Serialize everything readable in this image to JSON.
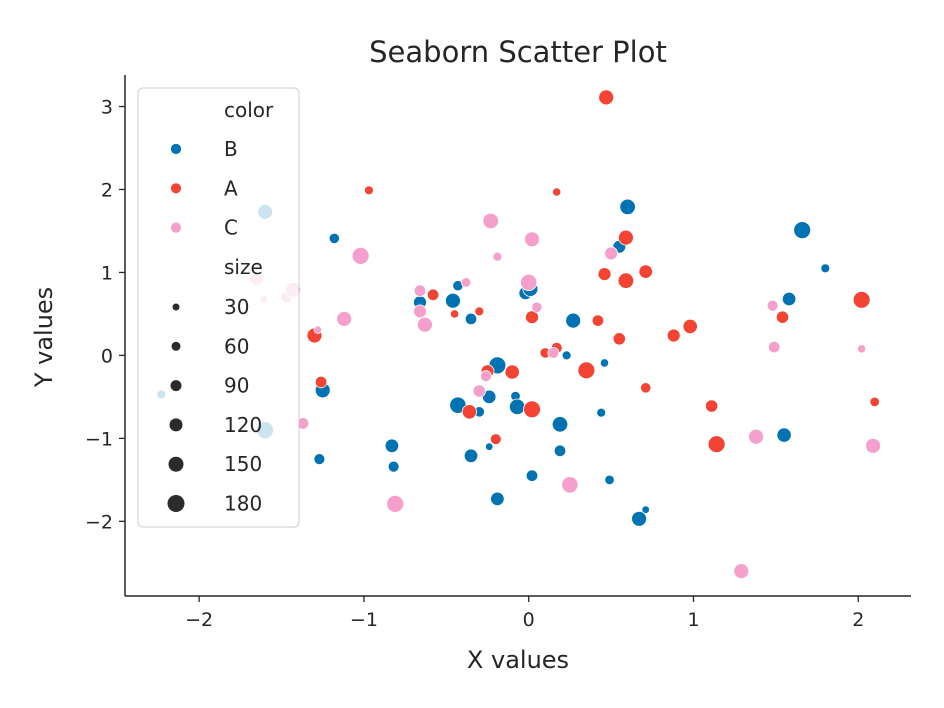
{
  "chart_data": {
    "type": "scatter",
    "title": "Seaborn Scatter Plot",
    "xlabel": "X values",
    "ylabel": "Y values",
    "xlim": [
      -2.45,
      2.32
    ],
    "ylim": [
      -2.9,
      3.38
    ],
    "xticks": [
      -2,
      -1,
      0,
      1,
      2
    ],
    "yticks": [
      -2,
      -1,
      0,
      1,
      2,
      3
    ],
    "xtick_labels": [
      "−2",
      "−1",
      "0",
      "1",
      "2"
    ],
    "ytick_labels": [
      "−2",
      "−1",
      "0",
      "1",
      "2",
      "3"
    ],
    "grid": false,
    "legend_placement": "upper-left",
    "legend": {
      "hue_title": "color",
      "hue_entries": [
        {
          "label": "B",
          "color": "#0173b2"
        },
        {
          "label": "A",
          "color": "#f24333"
        },
        {
          "label": "C",
          "color": "#f59fcc"
        }
      ],
      "size_title": "size",
      "size_entries": [
        "30",
        "60",
        "90",
        "120",
        "150",
        "180"
      ]
    },
    "series": [
      {
        "name": "B",
        "color": "#0173b2",
        "points": [
          {
            "x": -1.6,
            "y": 1.73,
            "size": 150
          },
          {
            "x": -2.23,
            "y": -0.47,
            "size": 60
          },
          {
            "x": -1.6,
            "y": -0.9,
            "size": 180
          },
          {
            "x": -1.18,
            "y": 1.41,
            "size": 80
          },
          {
            "x": -1.25,
            "y": -0.42,
            "size": 150
          },
          {
            "x": -1.27,
            "y": -1.25,
            "size": 90
          },
          {
            "x": -0.83,
            "y": -1.09,
            "size": 130
          },
          {
            "x": -0.82,
            "y": -1.34,
            "size": 90
          },
          {
            "x": -0.66,
            "y": 0.64,
            "size": 120
          },
          {
            "x": -0.46,
            "y": 0.66,
            "size": 150
          },
          {
            "x": -0.43,
            "y": 0.84,
            "size": 80
          },
          {
            "x": -0.43,
            "y": -0.6,
            "size": 170
          },
          {
            "x": -0.35,
            "y": 0.44,
            "size": 100
          },
          {
            "x": -0.35,
            "y": -1.21,
            "size": 130
          },
          {
            "x": -0.3,
            "y": -0.68,
            "size": 80
          },
          {
            "x": -0.24,
            "y": -0.5,
            "size": 130
          },
          {
            "x": -0.24,
            "y": -1.1,
            "size": 40
          },
          {
            "x": -0.19,
            "y": -0.12,
            "size": 180
          },
          {
            "x": -0.19,
            "y": -1.73,
            "size": 130
          },
          {
            "x": -0.08,
            "y": -0.49,
            "size": 70
          },
          {
            "x": -0.07,
            "y": -0.62,
            "size": 160
          },
          {
            "x": -0.02,
            "y": 0.75,
            "size": 120
          },
          {
            "x": 0.01,
            "y": 0.8,
            "size": 150
          },
          {
            "x": 0.02,
            "y": -1.45,
            "size": 100
          },
          {
            "x": 0.19,
            "y": -0.83,
            "size": 160
          },
          {
            "x": 0.19,
            "y": -1.15,
            "size": 100
          },
          {
            "x": 0.23,
            "y": 0.0,
            "size": 60
          },
          {
            "x": 0.27,
            "y": 0.42,
            "size": 150
          },
          {
            "x": 0.44,
            "y": -0.69,
            "size": 60
          },
          {
            "x": 0.46,
            "y": -0.09,
            "size": 50
          },
          {
            "x": 0.49,
            "y": -1.5,
            "size": 70
          },
          {
            "x": 0.55,
            "y": 1.31,
            "size": 120
          },
          {
            "x": 0.6,
            "y": 1.79,
            "size": 160
          },
          {
            "x": 0.67,
            "y": -1.97,
            "size": 150
          },
          {
            "x": 0.71,
            "y": -1.86,
            "size": 40
          },
          {
            "x": 1.55,
            "y": -0.96,
            "size": 140
          },
          {
            "x": 1.58,
            "y": 0.68,
            "size": 130
          },
          {
            "x": 1.66,
            "y": 1.51,
            "size": 180
          },
          {
            "x": 1.8,
            "y": 1.05,
            "size": 60
          }
        ]
      },
      {
        "name": "A",
        "color": "#f24333",
        "points": [
          {
            "x": -1.3,
            "y": 0.24,
            "size": 150
          },
          {
            "x": -1.26,
            "y": -0.32,
            "size": 100
          },
          {
            "x": -0.97,
            "y": 1.99,
            "size": 60
          },
          {
            "x": -0.58,
            "y": 0.73,
            "size": 100
          },
          {
            "x": -0.45,
            "y": 0.5,
            "size": 50
          },
          {
            "x": -0.36,
            "y": -0.68,
            "size": 140
          },
          {
            "x": -0.3,
            "y": 0.53,
            "size": 60
          },
          {
            "x": -0.25,
            "y": -0.19,
            "size": 120
          },
          {
            "x": -0.2,
            "y": -1.01,
            "size": 90
          },
          {
            "x": -0.1,
            "y": -0.2,
            "size": 140
          },
          {
            "x": 0.02,
            "y": 0.46,
            "size": 120
          },
          {
            "x": 0.02,
            "y": -0.65,
            "size": 180
          },
          {
            "x": 0.1,
            "y": 0.03,
            "size": 80
          },
          {
            "x": 0.17,
            "y": 0.09,
            "size": 90
          },
          {
            "x": 0.17,
            "y": 1.97,
            "size": 50
          },
          {
            "x": 0.35,
            "y": -0.18,
            "size": 180
          },
          {
            "x": 0.42,
            "y": 0.42,
            "size": 100
          },
          {
            "x": 0.46,
            "y": 0.98,
            "size": 120
          },
          {
            "x": 0.47,
            "y": 3.11,
            "size": 150
          },
          {
            "x": 0.55,
            "y": 0.2,
            "size": 110
          },
          {
            "x": 0.59,
            "y": 0.9,
            "size": 160
          },
          {
            "x": 0.59,
            "y": 1.42,
            "size": 150
          },
          {
            "x": 0.71,
            "y": -0.39,
            "size": 80
          },
          {
            "x": 0.71,
            "y": 1.01,
            "size": 130
          },
          {
            "x": 0.88,
            "y": 0.24,
            "size": 120
          },
          {
            "x": 0.98,
            "y": 0.35,
            "size": 140
          },
          {
            "x": 1.11,
            "y": -0.61,
            "size": 110
          },
          {
            "x": 1.14,
            "y": -1.07,
            "size": 180
          },
          {
            "x": 1.54,
            "y": 0.46,
            "size": 110
          },
          {
            "x": 2.02,
            "y": 0.67,
            "size": 180
          },
          {
            "x": 2.1,
            "y": -0.56,
            "size": 70
          }
        ]
      },
      {
        "name": "C",
        "color": "#f59fcc",
        "points": [
          {
            "x": -1.65,
            "y": 0.92,
            "size": 120
          },
          {
            "x": -1.61,
            "y": 0.68,
            "size": 40
          },
          {
            "x": -1.47,
            "y": 0.7,
            "size": 100
          },
          {
            "x": -1.43,
            "y": 0.79,
            "size": 150
          },
          {
            "x": -1.37,
            "y": -0.82,
            "size": 100
          },
          {
            "x": -1.28,
            "y": 0.31,
            "size": 40
          },
          {
            "x": -1.12,
            "y": 0.44,
            "size": 150
          },
          {
            "x": -1.02,
            "y": 1.2,
            "size": 180
          },
          {
            "x": -0.81,
            "y": -1.79,
            "size": 180
          },
          {
            "x": -0.66,
            "y": 0.53,
            "size": 120
          },
          {
            "x": -0.66,
            "y": 0.78,
            "size": 100
          },
          {
            "x": -0.63,
            "y": 0.37,
            "size": 150
          },
          {
            "x": -0.38,
            "y": 0.88,
            "size": 70
          },
          {
            "x": -0.3,
            "y": -0.43,
            "size": 110
          },
          {
            "x": -0.26,
            "y": -0.25,
            "size": 90
          },
          {
            "x": -0.23,
            "y": 1.62,
            "size": 160
          },
          {
            "x": -0.19,
            "y": 1.19,
            "size": 60
          },
          {
            "x": 0.0,
            "y": 0.88,
            "size": 170
          },
          {
            "x": 0.02,
            "y": 1.4,
            "size": 150
          },
          {
            "x": 0.05,
            "y": 0.58,
            "size": 80
          },
          {
            "x": 0.15,
            "y": 0.03,
            "size": 90
          },
          {
            "x": 0.25,
            "y": -1.56,
            "size": 170
          },
          {
            "x": 0.5,
            "y": 1.23,
            "size": 120
          },
          {
            "x": 1.29,
            "y": -2.6,
            "size": 150
          },
          {
            "x": 1.38,
            "y": -0.98,
            "size": 150
          },
          {
            "x": 1.48,
            "y": 0.6,
            "size": 90
          },
          {
            "x": 1.49,
            "y": 0.1,
            "size": 100
          },
          {
            "x": 2.02,
            "y": 0.08,
            "size": 50
          },
          {
            "x": 2.09,
            "y": -1.09,
            "size": 150
          }
        ]
      }
    ]
  }
}
